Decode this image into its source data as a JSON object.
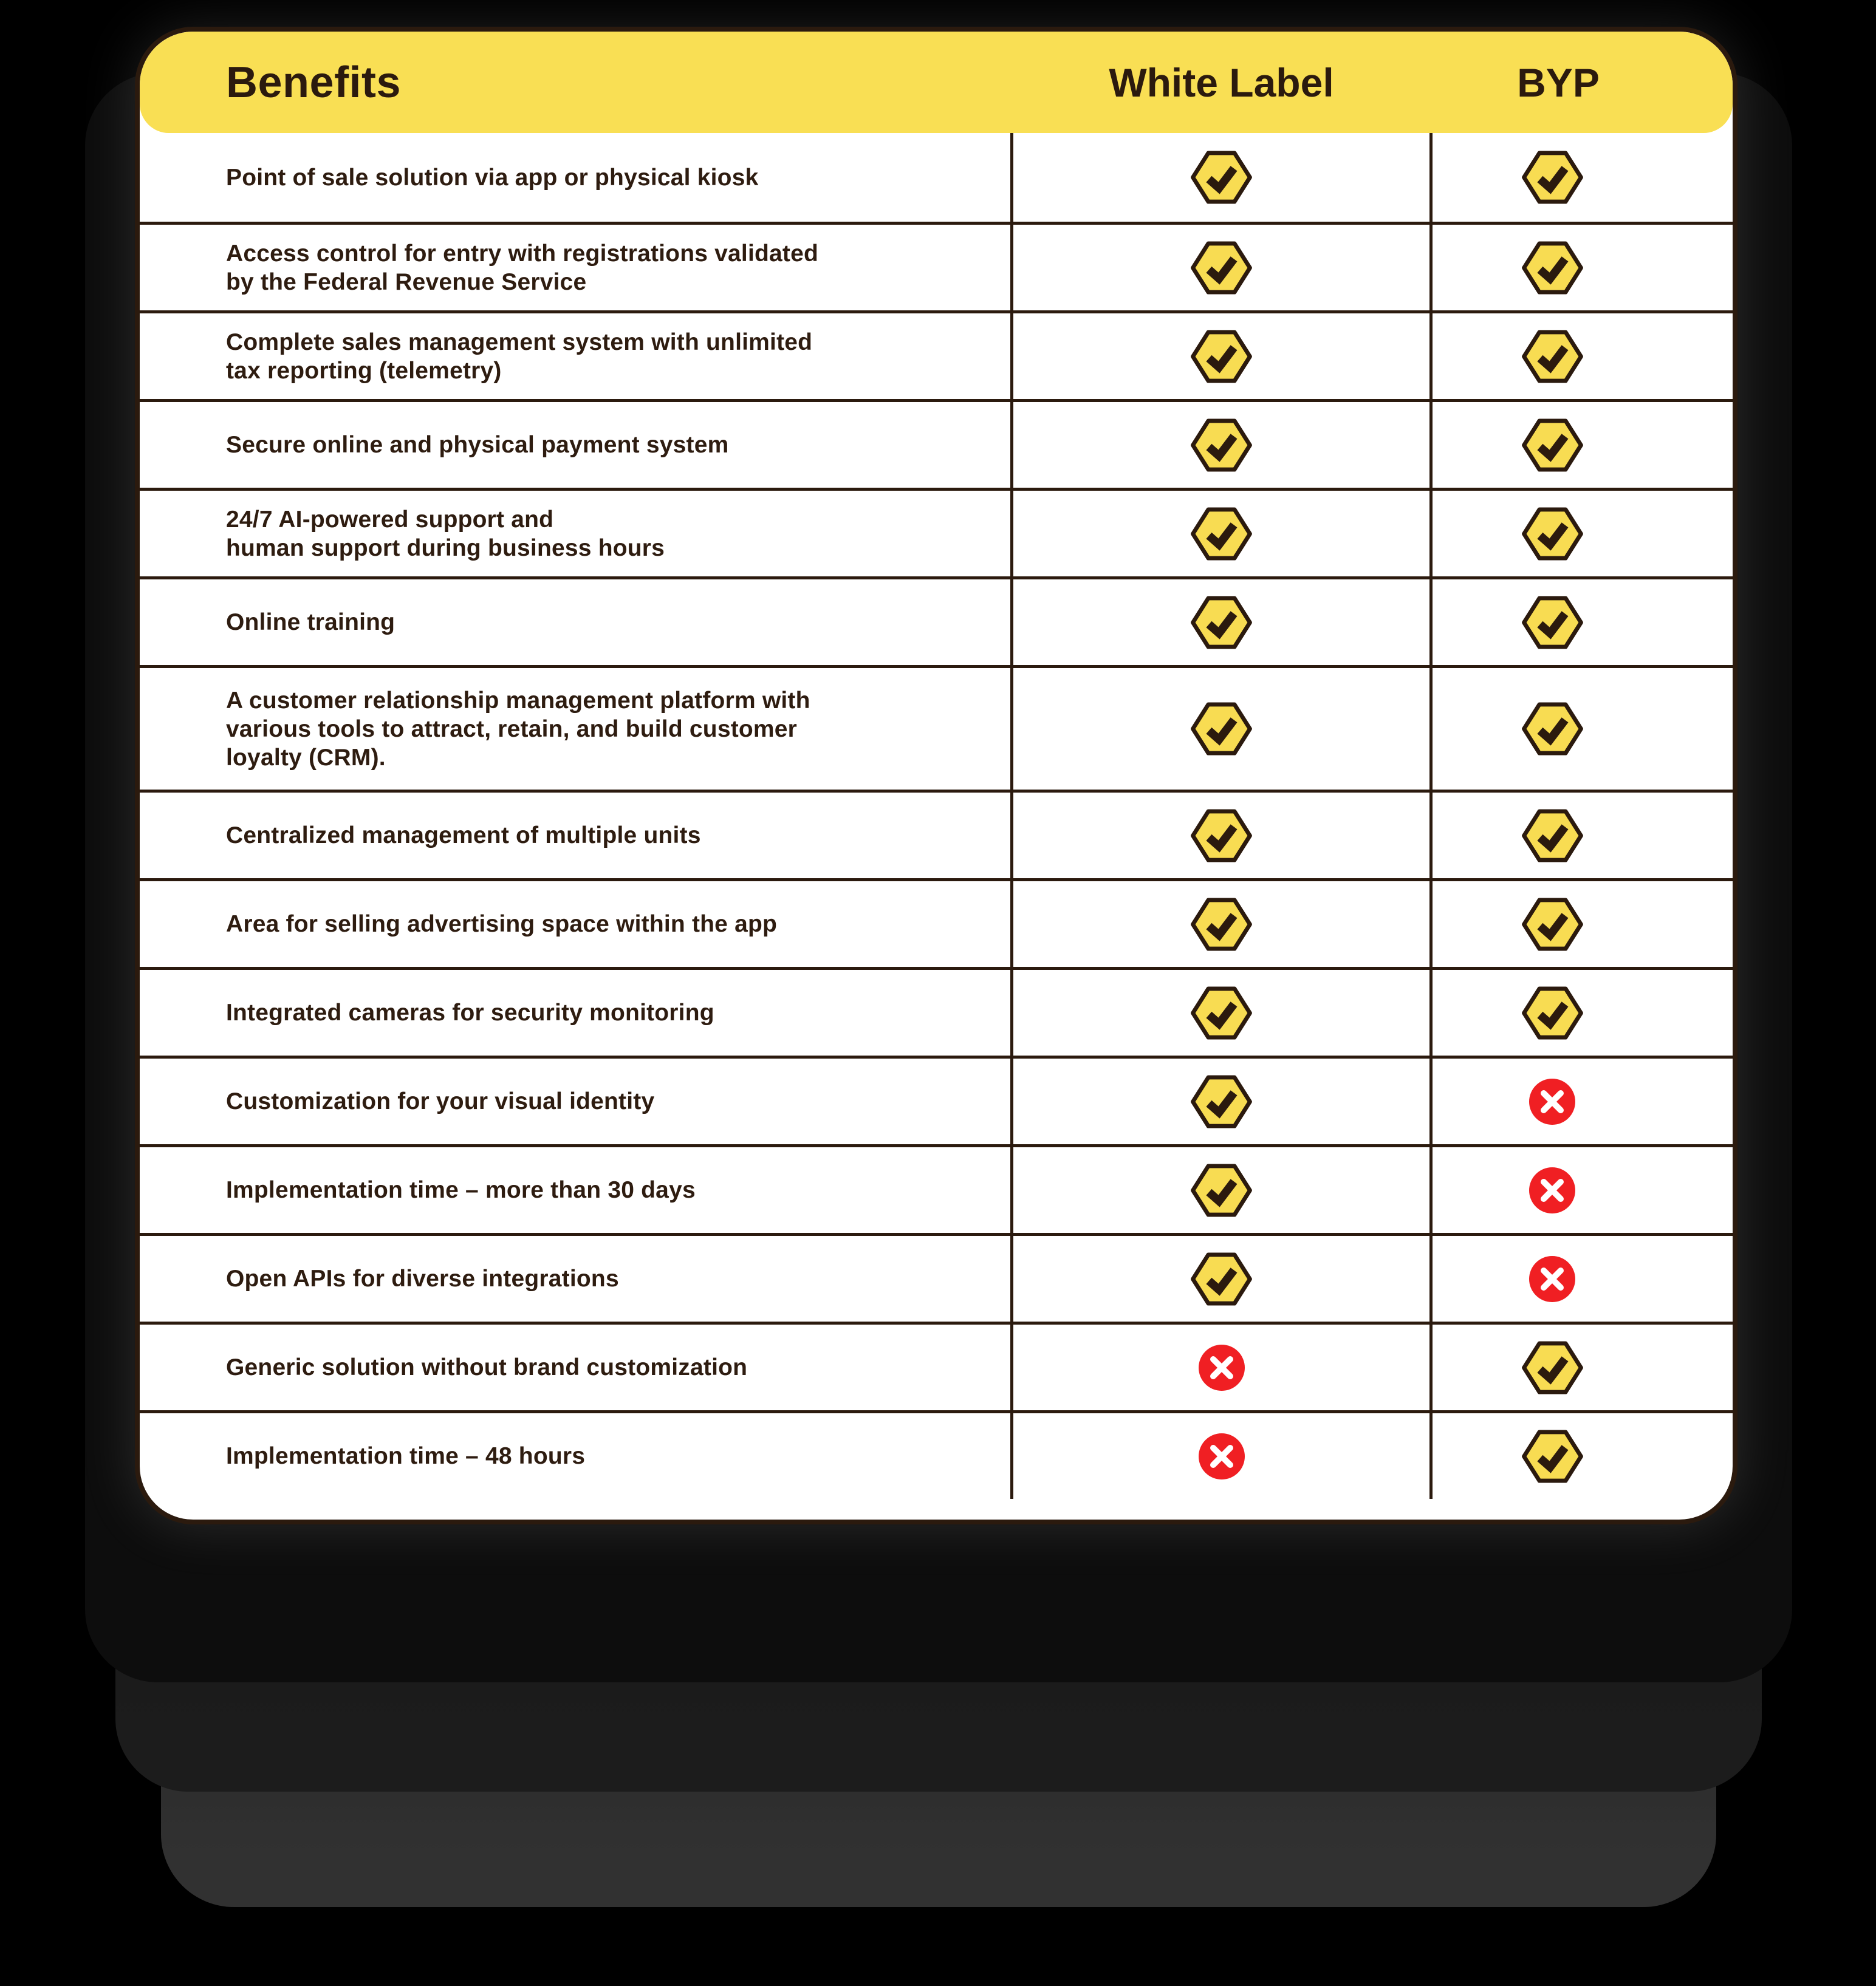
{
  "header": {
    "title": "Benefits",
    "columns": [
      "White Label",
      "BYP"
    ]
  },
  "chart_data": {
    "type": "table",
    "title": "Benefits",
    "columns": [
      "Benefits",
      "White Label",
      "BYP"
    ],
    "rows": [
      {
        "benefit": "Point of sale solution via app or physical kiosk",
        "white_label": true,
        "byp": true
      },
      {
        "benefit": "Access control for entry with registrations validated\nby the Federal Revenue Service",
        "white_label": true,
        "byp": true
      },
      {
        "benefit": "Complete sales management system with unlimited\ntax reporting (telemetry)",
        "white_label": true,
        "byp": true
      },
      {
        "benefit": "Secure online and physical payment system",
        "white_label": true,
        "byp": true
      },
      {
        "benefit": "24/7 AI-powered support and\nhuman support during business hours",
        "white_label": true,
        "byp": true
      },
      {
        "benefit": "Online training",
        "white_label": true,
        "byp": true
      },
      {
        "benefit": "A customer relationship management platform with\nvarious tools to attract, retain, and build customer\nloyalty (CRM).",
        "white_label": true,
        "byp": true
      },
      {
        "benefit": "Centralized management of multiple units",
        "white_label": true,
        "byp": true
      },
      {
        "benefit": "Area for selling advertising space within the app",
        "white_label": true,
        "byp": true
      },
      {
        "benefit": "Integrated cameras for security monitoring",
        "white_label": true,
        "byp": true
      },
      {
        "benefit": "Customization for your visual identity",
        "white_label": true,
        "byp": false
      },
      {
        "benefit": "Implementation time – more than 30 days",
        "white_label": true,
        "byp": false
      },
      {
        "benefit": "Open APIs for diverse integrations",
        "white_label": true,
        "byp": false
      },
      {
        "benefit": "Generic solution without brand customization",
        "white_label": false,
        "byp": true
      },
      {
        "benefit": "Implementation time – 48 hours",
        "white_label": false,
        "byp": true
      }
    ],
    "legend": {
      "check": "included",
      "cross": "not included"
    }
  },
  "colors": {
    "yellow": "#F9DF54",
    "yellow_icon": "#F8DC52",
    "ink": "#2B1A0E",
    "ink_text": "#2E1C10",
    "red": "#F01F23",
    "card_bg": "#FFFFFF",
    "background": "#000000"
  }
}
